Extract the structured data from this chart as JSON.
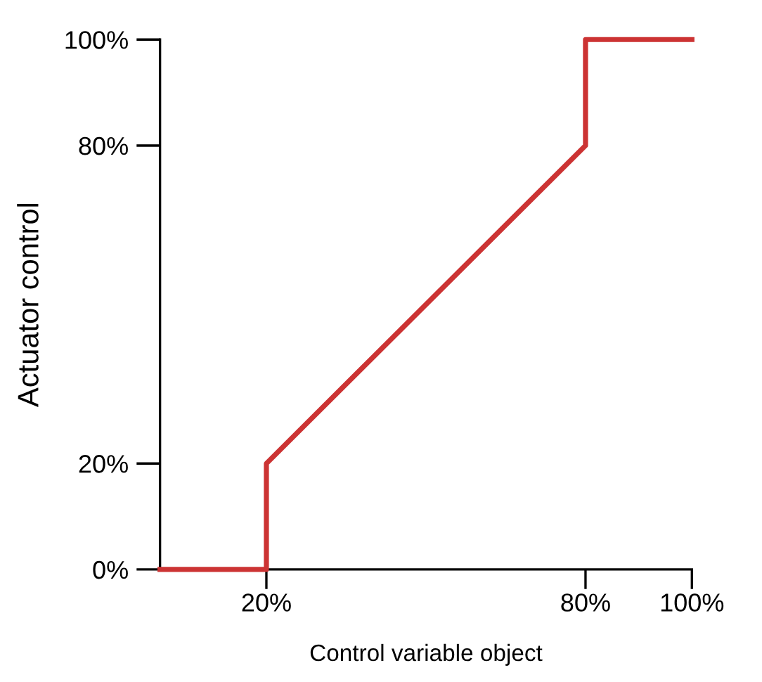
{
  "chart_data": {
    "type": "line",
    "xlabel": "Control variable object",
    "ylabel": "Actuator control",
    "x": [
      0,
      20,
      20,
      80,
      80,
      100
    ],
    "series": [
      {
        "color": "#cc3333",
        "values": [
          0,
          0,
          20,
          80,
          100,
          100
        ]
      }
    ],
    "xlim": [
      0,
      100
    ],
    "ylim": [
      0,
      100
    ],
    "xticks": [
      {
        "value": 20,
        "label": "20%"
      },
      {
        "value": 80,
        "label": "80%"
      },
      {
        "value": 100,
        "label": "100%"
      }
    ],
    "yticks": [
      {
        "value": 0,
        "label": "0%"
      },
      {
        "value": 20,
        "label": "20%"
      },
      {
        "value": 80,
        "label": "80%"
      },
      {
        "value": 100,
        "label": "100%"
      }
    ],
    "grid": false,
    "legend": false,
    "marker": "none",
    "line_style": "solid"
  }
}
